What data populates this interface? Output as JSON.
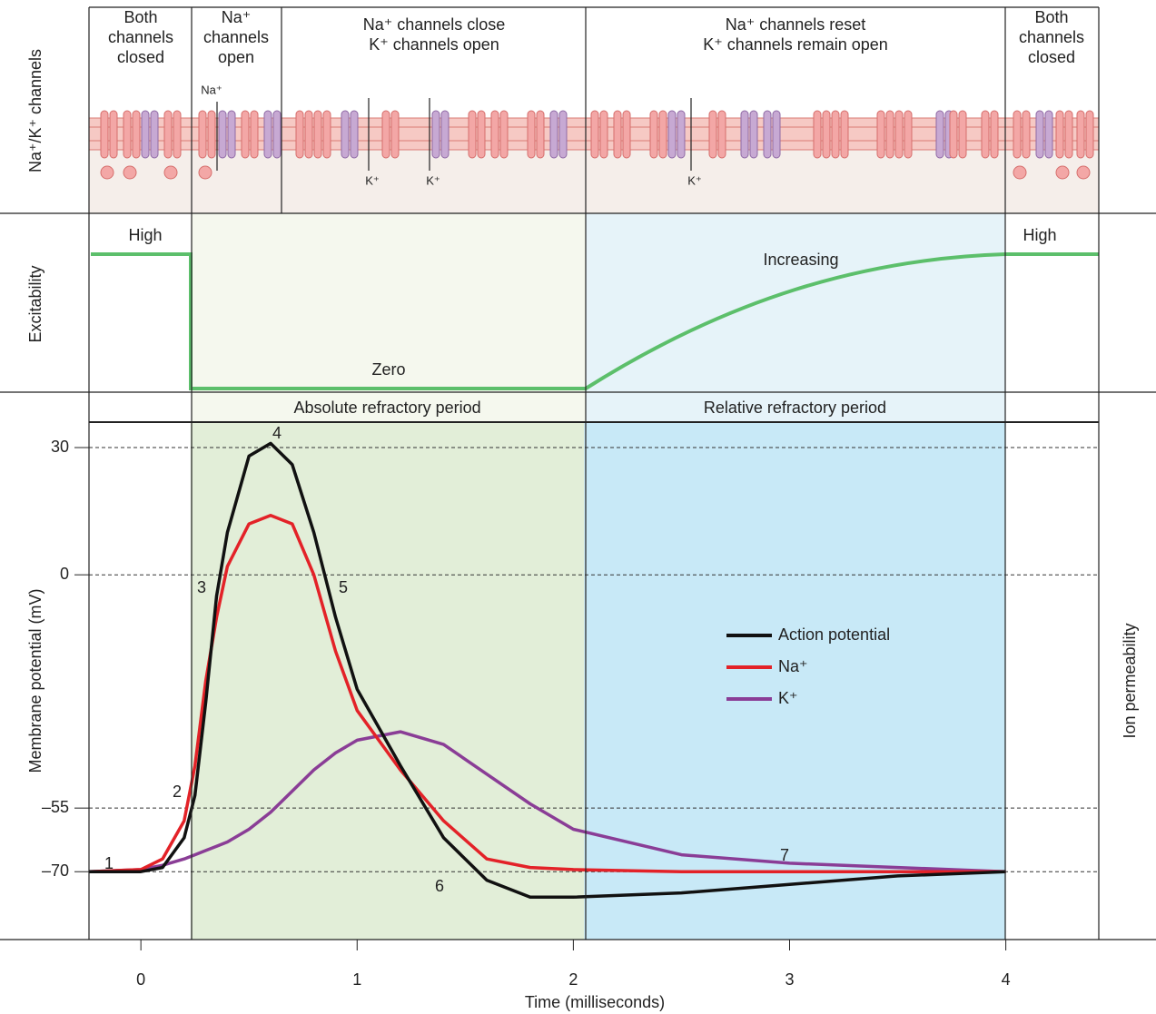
{
  "channel_panel": {
    "label": "Na⁺/K⁺ channels",
    "phases": [
      [
        "Both",
        "channels",
        "closed"
      ],
      [
        "Na⁺",
        "channels",
        "open"
      ],
      [
        "Na⁺ channels close",
        "K⁺ channels open"
      ],
      [
        "Na⁺ channels reset",
        "K⁺ channels remain open"
      ],
      [
        "Both",
        "channels",
        "closed"
      ]
    ],
    "ion_labels": [
      "Na⁺",
      "K⁺",
      "K⁺",
      "K⁺"
    ]
  },
  "excitability_panel": {
    "label": "Excitability",
    "levels": [
      "High",
      "Zero",
      "Increasing",
      "High"
    ]
  },
  "chart_data": {
    "type": "line",
    "xlabel": "Time (milliseconds)",
    "ylabel": "Membrane potential (mV)",
    "y2label": "Ion permeability",
    "x": [
      -0.24,
      0,
      0.1,
      0.2,
      0.25,
      0.3,
      0.35,
      0.4,
      0.5,
      0.6,
      0.7,
      0.8,
      0.9,
      1.0,
      1.2,
      1.4,
      1.6,
      1.8,
      2.0,
      2.5,
      3.0,
      3.5,
      4.0
    ],
    "series": [
      {
        "name": "Action potential",
        "color": "#111111",
        "values": [
          -70,
          -70,
          -69,
          -62,
          -52,
          -30,
          -5,
          10,
          28,
          31,
          26,
          10,
          -10,
          -27,
          -45,
          -62,
          -72,
          -76,
          -76,
          -75,
          -73,
          -71,
          -70
        ]
      },
      {
        "name": "Na⁺",
        "color": "#e32228",
        "values": [
          -70,
          -69.5,
          -67,
          -58,
          -45,
          -25,
          -10,
          2,
          12,
          14,
          12,
          0,
          -18,
          -32,
          -46,
          -58,
          -67,
          -69,
          -69.5,
          -70,
          -70,
          -70,
          -70
        ]
      },
      {
        "name": "K⁺",
        "color": "#8a3d96",
        "values": [
          -70,
          -69.5,
          -68.5,
          -67,
          -66,
          -65,
          -64,
          -63,
          -60,
          -56,
          -51,
          -46,
          -42,
          -39,
          -37,
          -40,
          -47,
          -54,
          -60,
          -66,
          -68,
          -69,
          -70
        ]
      }
    ],
    "regions": [
      {
        "label": "Absolute refractory period",
        "start": 0.23,
        "end": 2.05,
        "color": "#e2eed8"
      },
      {
        "label": "Relative refractory period",
        "start": 2.05,
        "end": 4.0,
        "color": "#c8e9f7"
      }
    ],
    "annotations": [
      "1",
      "2",
      "3",
      "4",
      "5",
      "6",
      "7"
    ],
    "xlim": [
      -0.24,
      4.43
    ],
    "ylim": [
      -86,
      36
    ],
    "xticks": [
      0,
      1,
      2,
      3,
      4
    ],
    "yticks": [
      {
        "value": -70,
        "label": "–70"
      },
      {
        "value": -55,
        "label": "–55"
      },
      0,
      30
    ],
    "grid": true
  }
}
